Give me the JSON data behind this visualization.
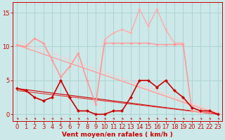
{
  "background_color": "#cce8e8",
  "grid_color": "#aad0d0",
  "xlabel": "Vent moyen/en rafales ( km/h )",
  "xlabel_color": "#cc0000",
  "xlabel_fontsize": 6.5,
  "tick_fontsize": 6.0,
  "tick_color": "#cc0000",
  "ylim": [
    -1.0,
    16.5
  ],
  "xlim": [
    -0.5,
    23.5
  ],
  "yticks": [
    0,
    5,
    10,
    15
  ],
  "xticks": [
    0,
    1,
    2,
    3,
    4,
    5,
    6,
    7,
    8,
    9,
    10,
    11,
    12,
    13,
    14,
    15,
    16,
    17,
    18,
    19,
    20,
    21,
    22,
    23
  ],
  "series": [
    {
      "x": [
        0,
        1,
        2,
        3,
        4,
        5,
        6,
        7,
        8,
        9,
        10,
        11,
        12,
        13,
        14,
        15,
        16,
        17,
        18,
        19,
        20,
        21,
        22,
        23
      ],
      "y": [
        10.2,
        10.0,
        11.2,
        10.5,
        8.0,
        5.5,
        7.0,
        9.0,
        5.0,
        1.5,
        11.0,
        12.0,
        12.5,
        12.0,
        15.5,
        13.0,
        15.5,
        12.5,
        10.5,
        10.5,
        0.5,
        0.3,
        0.3,
        0.1
      ],
      "color": "#ffaaaa",
      "lw": 1.0,
      "marker": "D",
      "ms": 2.0
    },
    {
      "x": [
        0,
        1,
        2,
        3,
        4,
        5,
        6,
        7,
        8,
        9,
        10,
        11,
        12,
        13,
        14,
        15,
        16,
        17,
        18,
        19,
        20,
        21,
        22,
        23
      ],
      "y": [
        10.2,
        10.0,
        11.2,
        10.5,
        8.0,
        5.5,
        7.0,
        9.0,
        5.0,
        1.5,
        10.5,
        10.5,
        10.5,
        10.5,
        10.5,
        10.5,
        10.3,
        10.3,
        10.3,
        10.3,
        0.5,
        0.3,
        0.3,
        0.1
      ],
      "color": "#ff9999",
      "lw": 1.0,
      "marker": "D",
      "ms": 2.0
    },
    {
      "x": [
        0,
        1,
        2,
        3,
        4,
        5,
        6,
        7,
        8,
        9,
        10,
        11,
        12,
        13,
        14,
        15,
        16,
        17,
        18,
        19,
        20,
        21,
        22,
        23
      ],
      "y": [
        3.8,
        3.5,
        2.5,
        2.0,
        2.5,
        5.0,
        2.5,
        0.5,
        0.5,
        0.0,
        0.0,
        0.5,
        0.5,
        2.5,
        5.0,
        5.0,
        4.0,
        5.0,
        3.5,
        2.5,
        1.0,
        0.5,
        0.5,
        0.0
      ],
      "color": "#cc0000",
      "lw": 1.2,
      "marker": "D",
      "ms": 2.5
    },
    {
      "x": [
        0,
        23
      ],
      "y": [
        10.2,
        0.1
      ],
      "color": "#ffbbbb",
      "lw": 0.8,
      "marker": null,
      "ms": 0
    },
    {
      "x": [
        0,
        23
      ],
      "y": [
        10.2,
        0.0
      ],
      "color": "#ff9999",
      "lw": 0.8,
      "marker": null,
      "ms": 0
    },
    {
      "x": [
        0,
        23
      ],
      "y": [
        3.8,
        0.0
      ],
      "color": "#cc0000",
      "lw": 0.8,
      "marker": null,
      "ms": 0
    },
    {
      "x": [
        0,
        23
      ],
      "y": [
        3.5,
        0.0
      ],
      "color": "#dd3333",
      "lw": 0.8,
      "marker": null,
      "ms": 0
    },
    {
      "x": [
        0,
        23
      ],
      "y": [
        10.8,
        0.3
      ],
      "color": "#ffcccc",
      "lw": 0.7,
      "marker": null,
      "ms": 0
    }
  ]
}
